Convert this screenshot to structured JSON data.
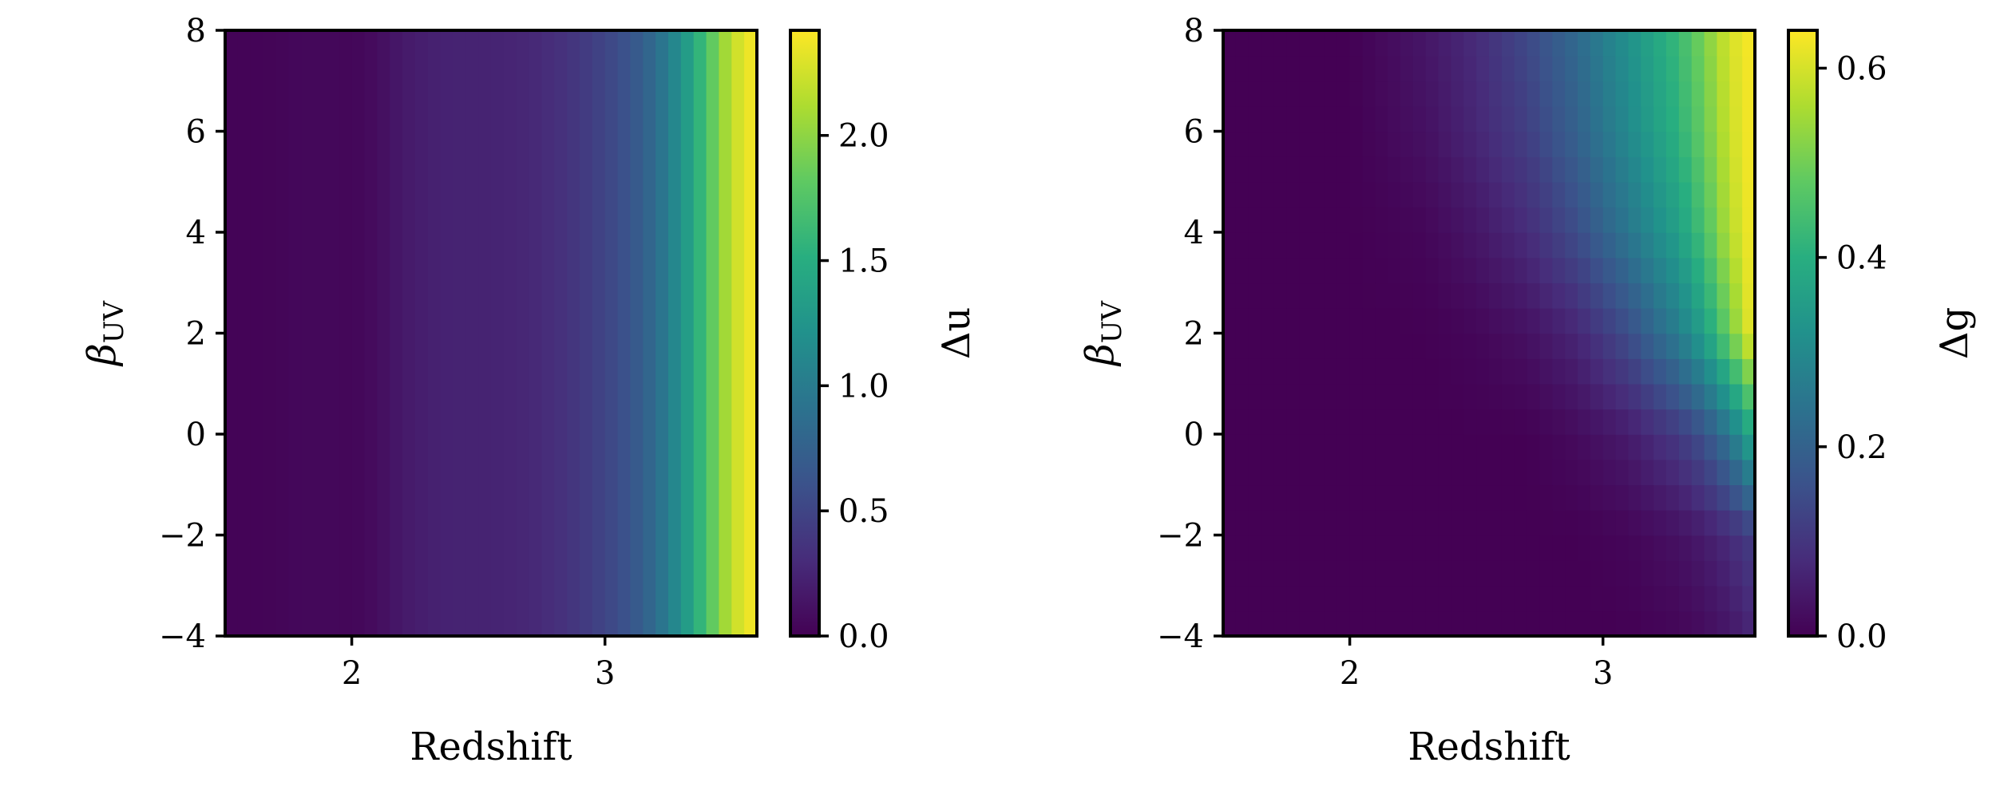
{
  "figure": {
    "colormap": "viridis"
  },
  "chart_data": [
    {
      "type": "heatmap",
      "title": "",
      "xlabel": "Redshift",
      "ylabel": "β_UV",
      "colorbar_label": "Δu",
      "xlim": [
        1.5,
        3.6
      ],
      "ylim": [
        -4,
        8
      ],
      "clim": [
        0,
        2.42
      ],
      "x_ticks": [
        2,
        3
      ],
      "x_tick_labels": [
        "2",
        "3"
      ],
      "y_ticks": [
        -4,
        -2,
        0,
        2,
        4,
        6,
        8
      ],
      "y_tick_labels": [
        "−4",
        "−2",
        "0",
        "2",
        "4",
        "6",
        "8"
      ],
      "colorbar_ticks": [
        0.0,
        0.5,
        1.0,
        1.5,
        2.0
      ],
      "colorbar_tick_labels": [
        "0.0",
        "0.5",
        "1.0",
        "1.5",
        "2.0"
      ],
      "z_by_redshift": {
        "x": [
          1.5,
          1.6,
          1.7,
          1.8,
          1.9,
          2.0,
          2.1,
          2.2,
          2.3,
          2.4,
          2.5,
          2.6,
          2.7,
          2.8,
          2.9,
          3.0,
          3.1,
          3.2,
          3.3,
          3.4,
          3.5,
          3.6
        ],
        "values": [
          0.02,
          0.02,
          0.03,
          0.05,
          0.05,
          0.04,
          0.08,
          0.17,
          0.22,
          0.24,
          0.24,
          0.25,
          0.27,
          0.32,
          0.4,
          0.5,
          0.63,
          0.85,
          1.2,
          1.7,
          2.2,
          2.42
        ]
      }
    },
    {
      "type": "heatmap",
      "title": "",
      "xlabel": "Redshift",
      "ylabel": "β_UV",
      "colorbar_label": "Δg",
      "xlim": [
        1.5,
        3.6
      ],
      "ylim": [
        -4,
        8
      ],
      "clim": [
        0,
        0.64
      ],
      "x_ticks": [
        2,
        3
      ],
      "x_tick_labels": [
        "2",
        "3"
      ],
      "y_ticks": [
        -4,
        -2,
        0,
        2,
        4,
        6,
        8
      ],
      "y_tick_labels": [
        "−4",
        "−2",
        "0",
        "2",
        "4",
        "6",
        "8"
      ],
      "colorbar_ticks": [
        0.0,
        0.2,
        0.4,
        0.6
      ],
      "colorbar_tick_labels": [
        "0.0",
        "0.2",
        "0.4",
        "0.6"
      ],
      "z_grid": {
        "x": [
          1.5,
          2.0,
          2.3,
          2.5,
          2.7,
          2.9,
          3.1,
          3.3,
          3.4,
          3.5,
          3.6
        ],
        "y": [
          -4,
          -2,
          0,
          2,
          4,
          6,
          8
        ],
        "values": [
          [
            0.0,
            0.0,
            0.0,
            0.0,
            0.0,
            0.0,
            0.0,
            0.01,
            0.02,
            0.04,
            0.07
          ],
          [
            0.0,
            0.0,
            0.0,
            0.0,
            0.0,
            0.0,
            0.01,
            0.03,
            0.05,
            0.08,
            0.12
          ],
          [
            0.0,
            0.0,
            0.0,
            0.0,
            0.0,
            0.02,
            0.05,
            0.11,
            0.16,
            0.25,
            0.4
          ],
          [
            0.0,
            0.0,
            0.0,
            0.01,
            0.03,
            0.07,
            0.15,
            0.27,
            0.36,
            0.5,
            0.64
          ],
          [
            0.0,
            0.0,
            0.01,
            0.04,
            0.08,
            0.15,
            0.25,
            0.36,
            0.45,
            0.57,
            0.64
          ],
          [
            0.0,
            0.0,
            0.03,
            0.07,
            0.12,
            0.2,
            0.3,
            0.41,
            0.49,
            0.59,
            0.64
          ],
          [
            0.0,
            0.0,
            0.04,
            0.08,
            0.14,
            0.22,
            0.32,
            0.43,
            0.51,
            0.6,
            0.64
          ]
        ]
      }
    }
  ]
}
